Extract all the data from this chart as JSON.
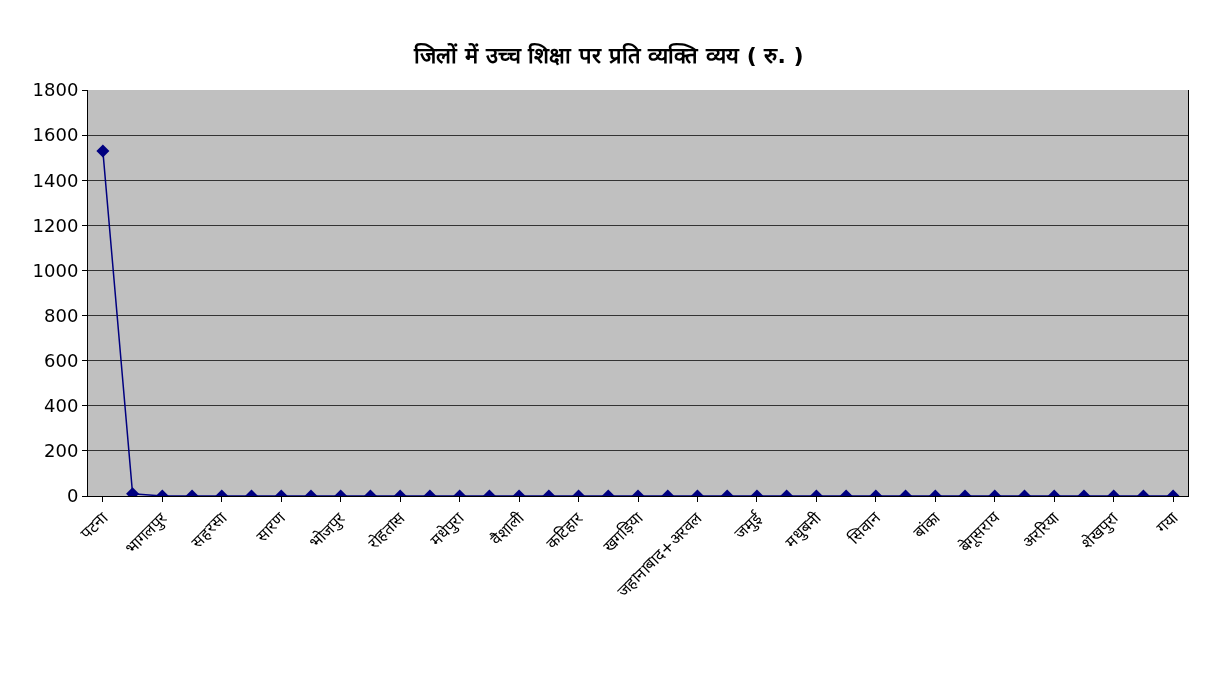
{
  "chart_data": {
    "type": "line",
    "title": "जिलों में उच्च शिक्षा पर प्रति व्यक्ति व्यय ( रु. )",
    "categories": [
      "पटना",
      null,
      "भागलपुर",
      null,
      "सहरसा",
      null,
      "सारण",
      null,
      "भोजपुर",
      null,
      "रोहतास",
      null,
      "मधेपुरा",
      null,
      "वैशाली",
      null,
      "कटिहार",
      null,
      "खगड़िया",
      null,
      "जहानाबाद+अरवल",
      null,
      "जमुई",
      null,
      "मधुबनी",
      null,
      "सिवान",
      null,
      "बांका",
      null,
      "बेगूसराय",
      null,
      "अररिया",
      null,
      "शेखपुरा",
      null,
      "गया"
    ],
    "series": [
      {
        "color": "#000080",
        "values": [
          1530,
          10,
          0,
          0,
          0,
          0,
          0,
          0,
          0,
          0,
          0,
          0,
          0,
          0,
          0,
          0,
          0,
          0,
          0,
          0,
          0,
          0,
          0,
          0,
          0,
          0,
          0,
          0,
          0,
          0,
          0,
          0,
          0,
          0,
          0,
          0,
          0
        ]
      }
    ],
    "ylim": [
      0,
      1800
    ],
    "yticks": [
      0,
      200,
      400,
      600,
      800,
      1000,
      1200,
      1400,
      1600,
      1800
    ],
    "grid": "y",
    "marker": "diamond",
    "line_style": "solid"
  }
}
